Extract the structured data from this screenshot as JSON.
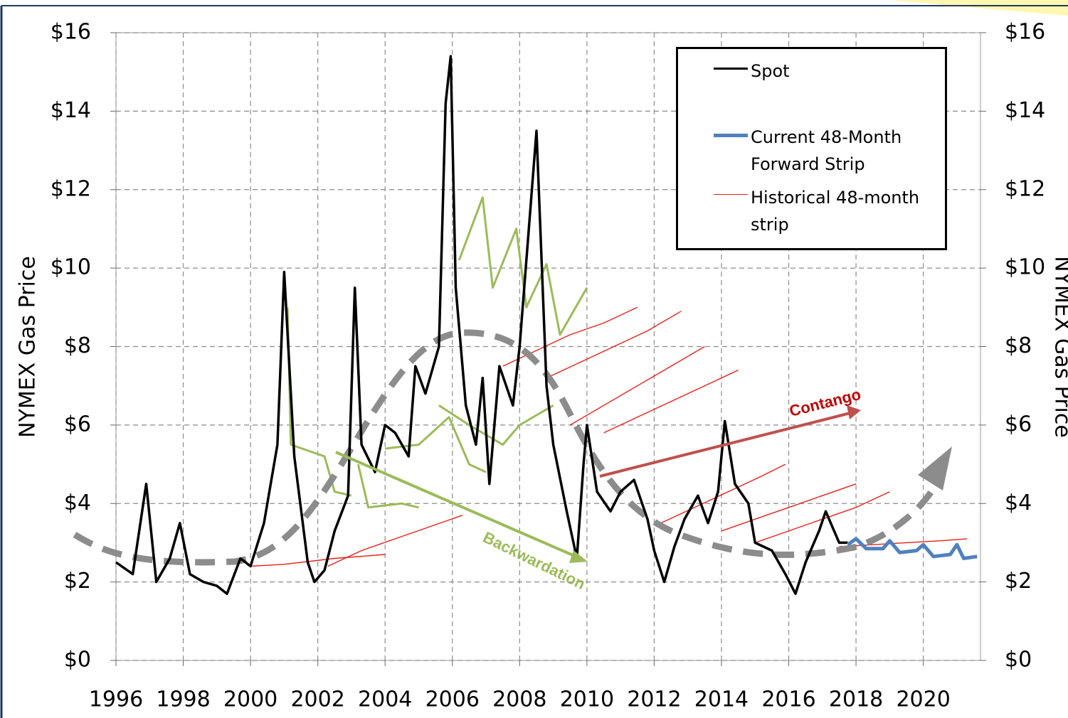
{
  "chart_data": {
    "type": "line",
    "ylabel": "NYMEX Gas Price",
    "y2label": "NYMEX Gas Price",
    "xlim": [
      1996,
      2021.7
    ],
    "xticks": [
      1996,
      1998,
      2000,
      2002,
      2004,
      2006,
      2008,
      2010,
      2012,
      2014,
      2016,
      2018,
      2020
    ],
    "ylim": [
      0,
      16
    ],
    "yticks": [
      {
        "value": 0,
        "label": "$0"
      },
      {
        "value": 2,
        "label": "$2"
      },
      {
        "value": 4,
        "label": "$4"
      },
      {
        "value": 6,
        "label": "$6"
      },
      {
        "value": 8,
        "label": "$8"
      },
      {
        "value": 10,
        "label": "$10"
      },
      {
        "value": 12,
        "label": "$12"
      },
      {
        "value": 14,
        "label": "$14"
      },
      {
        "value": 16,
        "label": "$16"
      }
    ],
    "y2lim": [
      0,
      16
    ],
    "y2ticks": [
      {
        "value": 0,
        "label": "$0"
      },
      {
        "value": 2,
        "label": "$2"
      },
      {
        "value": 4,
        "label": "$4"
      },
      {
        "value": 6,
        "label": "$6"
      },
      {
        "value": 8,
        "label": "$8"
      },
      {
        "value": 10,
        "label": "$10"
      },
      {
        "value": 12,
        "label": "$12"
      },
      {
        "value": 14,
        "label": "$14"
      },
      {
        "value": 16,
        "label": "$16"
      }
    ],
    "grid": true,
    "legend": "upper right",
    "annotations": [
      "Contango",
      "Backwardation"
    ],
    "series": [
      {
        "name": "Historical  48-month strip",
        "color": "#e8201a",
        "width": 1.4,
        "x": [
          2000,
          2001,
          2002.5,
          2004
        ],
        "values": [
          2.4,
          2.45,
          2.6,
          2.7
        ]
      },
      {
        "color": "#e8201a",
        "width": 1.4,
        "x": [
          2002.3,
          2003.3,
          2004.3,
          2005.3,
          2006.3
        ],
        "values": [
          2.4,
          2.8,
          3.1,
          3.4,
          3.7
        ]
      },
      {
        "color": "#e8201a",
        "width": 1.4,
        "x": [
          2007.5,
          2008.5,
          2009.5,
          2010.5,
          2011.5
        ],
        "values": [
          7.5,
          7.9,
          8.3,
          8.6,
          9.0
        ]
      },
      {
        "color": "#e8201a",
        "width": 1.4,
        "x": [
          2008.8,
          2009.8,
          2010.8,
          2011.8,
          2012.8
        ],
        "values": [
          7.2,
          7.6,
          8.0,
          8.4,
          8.9
        ]
      },
      {
        "color": "#e8201a",
        "width": 1.4,
        "x": [
          2009.5,
          2010.5,
          2011.5,
          2012.5,
          2013.5
        ],
        "values": [
          6.0,
          6.5,
          7.0,
          7.5,
          8.0
        ]
      },
      {
        "color": "#e8201a",
        "width": 1.4,
        "x": [
          2010.5,
          2011.5,
          2012.5,
          2013.5,
          2014.5
        ],
        "values": [
          5.8,
          6.2,
          6.6,
          7.0,
          7.4
        ]
      },
      {
        "color": "#e8201a",
        "width": 1.4,
        "x": [
          2012.2,
          2013.2,
          2014.2,
          2015.2,
          2015.9
        ],
        "values": [
          3.5,
          3.9,
          4.3,
          4.7,
          5.0
        ]
      },
      {
        "color": "#e8201a",
        "width": 1.4,
        "x": [
          2014,
          2015,
          2016,
          2017,
          2018
        ],
        "values": [
          3.3,
          3.6,
          3.9,
          4.2,
          4.5
        ]
      },
      {
        "color": "#e8201a",
        "width": 1.4,
        "x": [
          2015,
          2016,
          2017,
          2018,
          2019
        ],
        "values": [
          3.0,
          3.3,
          3.6,
          3.9,
          4.3
        ]
      },
      {
        "color": "#e8201a",
        "width": 1.4,
        "x": [
          2017.5,
          2018.5,
          2019.5,
          2020.5,
          2021.3
        ],
        "values": [
          2.9,
          2.95,
          3.0,
          3.05,
          3.1
        ]
      },
      {
        "color": "#9bbb59",
        "width": 3,
        "x": [
          2001.1,
          2001.2,
          2002.2,
          2002.5,
          2003
        ],
        "values": [
          9.0,
          5.5,
          5.2,
          4.3,
          4.2
        ]
      },
      {
        "color": "#9bbb59",
        "width": 3,
        "x": [
          2003.2,
          2003.5,
          2004.5,
          2005
        ],
        "values": [
          5.0,
          3.9,
          4.0,
          3.9
        ]
      },
      {
        "color": "#9bbb59",
        "width": 3,
        "x": [
          2004,
          2005,
          2005.9,
          2006.5,
          2007
        ],
        "values": [
          5.4,
          5.5,
          6.2,
          5.0,
          4.8
        ]
      },
      {
        "color": "#9bbb59",
        "width": 3,
        "x": [
          2005.6,
          2006.5,
          2007.5,
          2008,
          2009
        ],
        "values": [
          6.5,
          6.0,
          5.5,
          6.0,
          6.5
        ]
      },
      {
        "color": "#9bbb59",
        "width": 3,
        "x": [
          2006.2,
          2006.9,
          2007.2,
          2007.9,
          2008.2,
          2008.8,
          2009.2,
          2010
        ],
        "values": [
          10.2,
          11.8,
          9.5,
          11.0,
          9.0,
          10.1,
          8.3,
          9.5
        ]
      },
      {
        "name": "Spot",
        "color": "#000000",
        "width": 3.5,
        "x": [
          1996,
          1996.5,
          1996.9,
          1997.2,
          1997.6,
          1997.9,
          1998.2,
          1998.6,
          1999.0,
          1999.3,
          1999.7,
          2000.0,
          2000.4,
          2000.8,
          2001.0,
          2001.3,
          2001.7,
          2001.9,
          2002.2,
          2002.5,
          2002.9,
          2003.1,
          2003.3,
          2003.7,
          2004.0,
          2004.3,
          2004.7,
          2004.9,
          2005.2,
          2005.6,
          2005.8,
          2005.95,
          2006.1,
          2006.4,
          2006.7,
          2006.9,
          2007.1,
          2007.4,
          2007.8,
          2008.0,
          2008.5,
          2008.8,
          2009.0,
          2009.4,
          2009.7,
          2009.9,
          2010.0,
          2010.3,
          2010.7,
          2011.0,
          2011.4,
          2011.8,
          2012.0,
          2012.3,
          2012.6,
          2012.9,
          2013.3,
          2013.6,
          2013.9,
          2014.1,
          2014.4,
          2014.8,
          2015.0,
          2015.5,
          2015.9,
          2016.2,
          2016.5,
          2016.9,
          2017.1,
          2017.5,
          2017.75
        ],
        "values": [
          2.5,
          2.2,
          4.5,
          2.0,
          2.6,
          3.5,
          2.2,
          2.0,
          1.9,
          1.7,
          2.6,
          2.4,
          3.5,
          5.5,
          9.9,
          5.2,
          2.5,
          2.0,
          2.3,
          3.3,
          4.2,
          9.5,
          5.5,
          4.8,
          6.0,
          5.8,
          5.2,
          7.5,
          6.8,
          8.0,
          14.2,
          15.4,
          9.5,
          6.5,
          5.5,
          7.2,
          4.5,
          7.5,
          6.5,
          8.0,
          13.5,
          7.0,
          5.5,
          3.8,
          2.6,
          5.0,
          6.0,
          4.3,
          3.8,
          4.3,
          4.6,
          3.6,
          2.8,
          2.0,
          2.9,
          3.6,
          4.2,
          3.5,
          4.3,
          6.1,
          4.5,
          4.0,
          3.0,
          2.8,
          2.2,
          1.7,
          2.5,
          3.3,
          3.8,
          3.0,
          3.0
        ]
      },
      {
        "name": "Current 48-Month Forward Strip",
        "color": "#4f81bd",
        "width": 5,
        "x": [
          2017.75,
          2018.0,
          2018.3,
          2018.8,
          2019.0,
          2019.3,
          2019.8,
          2020.0,
          2020.3,
          2020.8,
          2021.0,
          2021.2,
          2021.6
        ],
        "values": [
          2.95,
          3.1,
          2.85,
          2.85,
          3.05,
          2.75,
          2.8,
          2.95,
          2.65,
          2.7,
          2.95,
          2.6,
          2.65
        ]
      }
    ]
  }
}
